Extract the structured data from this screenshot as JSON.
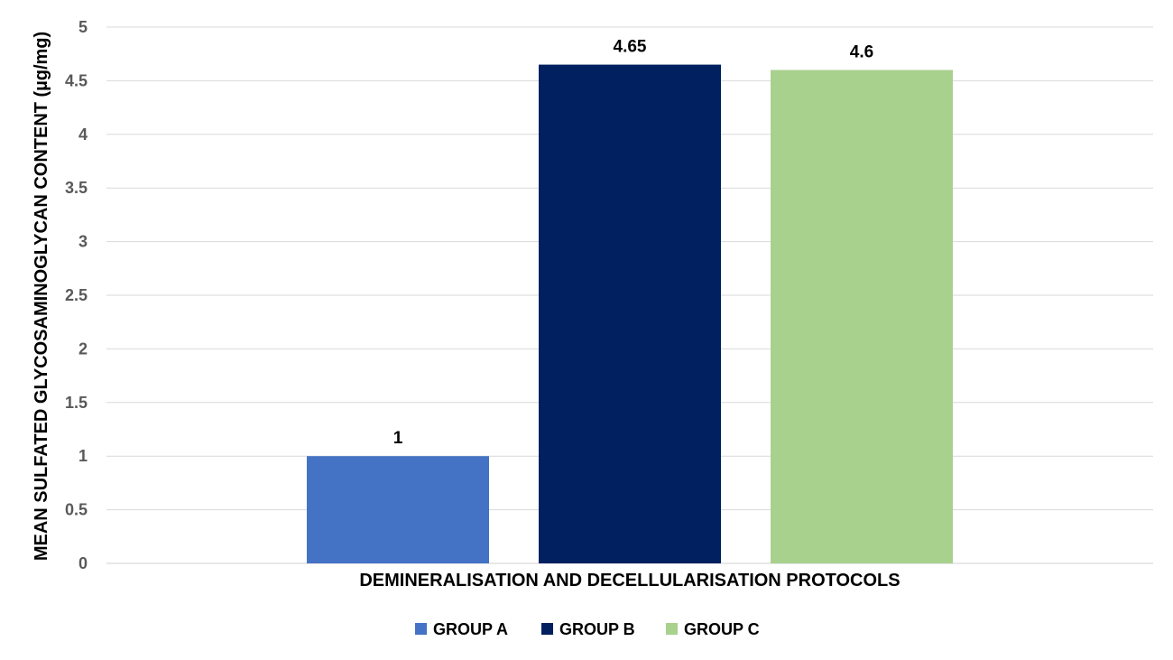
{
  "chart_data": {
    "type": "bar",
    "title": "",
    "xlabel": "DEMINERALISATION AND DECELLULARISATION PROTOCOLS",
    "ylabel": "MEAN SULFATED GLYCOSAMINOGLYCAN CONTENT (µg/mg)",
    "ylim": [
      0,
      5
    ],
    "ytick_step": 0.5,
    "yticks": [
      "0",
      "0.5",
      "1",
      "1.5",
      "2",
      "2.5",
      "3",
      "3.5",
      "4",
      "4.5",
      "5"
    ],
    "grid": true,
    "legend": "bottom",
    "series": [
      {
        "name": "GROUP A",
        "values": [
          1
        ],
        "label": "1",
        "color": "#4472c4"
      },
      {
        "name": "GROUP B",
        "values": [
          4.65
        ],
        "label": "4.65",
        "color": "#002060"
      },
      {
        "name": "GROUP C",
        "values": [
          4.6
        ],
        "label": "4.6",
        "color": "#a9d18e"
      }
    ]
  }
}
